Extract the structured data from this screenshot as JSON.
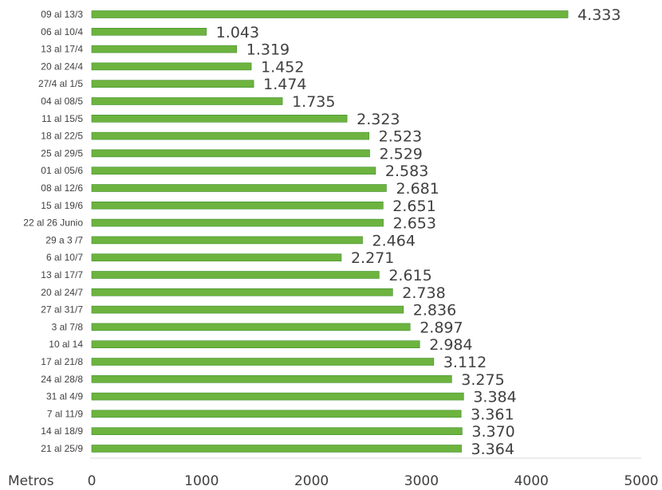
{
  "chart_data": {
    "type": "bar",
    "orientation": "horizontal",
    "xlabel": "Metros",
    "xlim": [
      0,
      5000
    ],
    "xticks": [
      0,
      1000,
      2000,
      3000,
      4000,
      5000
    ],
    "tick_labels": [
      "0",
      "1000",
      "2000",
      "3000",
      "4000",
      "5000"
    ],
    "bar_color": "#6db33f",
    "bar_edge_color": "#3e8e2c",
    "categories": [
      "09 al 13/3",
      "06 al 10/4",
      "13 al 17/4",
      "20 al 24/4",
      "27/4 al 1/5",
      "04 al 08/5",
      "11 al 15/5",
      "18 al 22/5",
      "25 al 29/5",
      "01 al 05/6",
      "08 al 12/6",
      "15 al 19/6",
      "22 al 26 Junio",
      "29 a 3 /7",
      "6 al 10/7",
      "13 al 17/7",
      "20 al 24/7",
      "27 al 31/7",
      "3 al 7/8",
      "10 al 14",
      "17 al 21/8",
      "24 al 28/8",
      "31 al 4/9",
      "7 al 11/9",
      "14 al 18/9",
      "21 al 25/9"
    ],
    "values": [
      4333,
      1043,
      1319,
      1452,
      1474,
      1735,
      2323,
      2523,
      2529,
      2583,
      2681,
      2651,
      2653,
      2464,
      2271,
      2615,
      2738,
      2836,
      2897,
      2984,
      3112,
      3275,
      3384,
      3361,
      3370,
      3364
    ],
    "value_labels": [
      "4.333",
      "1.043",
      "1.319",
      "1.452",
      "1.474",
      "1.735",
      "2.323",
      "2.523",
      "2.529",
      "2.583",
      "2.681",
      "2.651",
      "2.653",
      "2.464",
      "2.271",
      "2.615",
      "2.738",
      "2.836",
      "2.897",
      "2.984",
      "3.112",
      "3.275",
      "3.384",
      "3.361",
      "3.370",
      "3.364"
    ],
    "grid": false,
    "legend": "none"
  }
}
